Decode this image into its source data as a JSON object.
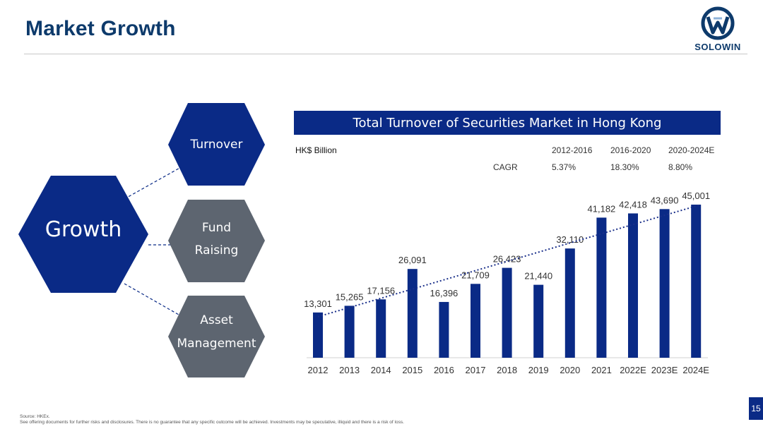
{
  "page": {
    "title": "Market Growth",
    "logo_text": "SOLOWIN",
    "page_number": "15"
  },
  "diagram": {
    "center": "Growth",
    "nodes": [
      {
        "lines": [
          "Turnover"
        ],
        "color": "#0a2a86"
      },
      {
        "lines": [
          "Fund",
          "Raising"
        ],
        "color": "#5d6570"
      },
      {
        "lines": [
          "Asset",
          "Management"
        ],
        "color": "#5d6570"
      }
    ],
    "center_color": "#0a2a86"
  },
  "chart_data": {
    "type": "bar",
    "title": "Total Turnover of Securities Market in Hong Kong",
    "unit": "HK$ Billion",
    "categories": [
      "2012",
      "2013",
      "2014",
      "2015",
      "2016",
      "2017",
      "2018",
      "2019",
      "2020",
      "2021",
      "2022E",
      "2023E",
      "2024E"
    ],
    "values": [
      13301,
      15265,
      17156,
      26091,
      16396,
      21709,
      26423,
      21440,
      32110,
      41182,
      42418,
      43690,
      45001
    ],
    "value_labels": [
      "13,301",
      "15,265",
      "17,156",
      "26,091",
      "16,396",
      "21,709",
      "26,423",
      "21,440",
      "32,110",
      "41,182",
      "42,418",
      "43,690",
      "45,001"
    ],
    "bar_color": "#0a2a86",
    "trendline": {
      "style": "dotted",
      "from": "2012",
      "to": "2024E"
    },
    "ylim": [
      0,
      48000
    ],
    "grid": false,
    "cagr": {
      "label": "CAGR",
      "periods": [
        "2012-2016",
        "2016-2020",
        "2020-2024E"
      ],
      "values": [
        "5.37%",
        "18.30%",
        "8.80%"
      ]
    }
  },
  "footnote": {
    "source": "Source: HKEx.",
    "disclaimer": "See offering documents for further risks and disclosures. There is no guarantee that any specific outcome will be achieved. Investments may be speculative, illiquid and there is a risk of loss."
  }
}
